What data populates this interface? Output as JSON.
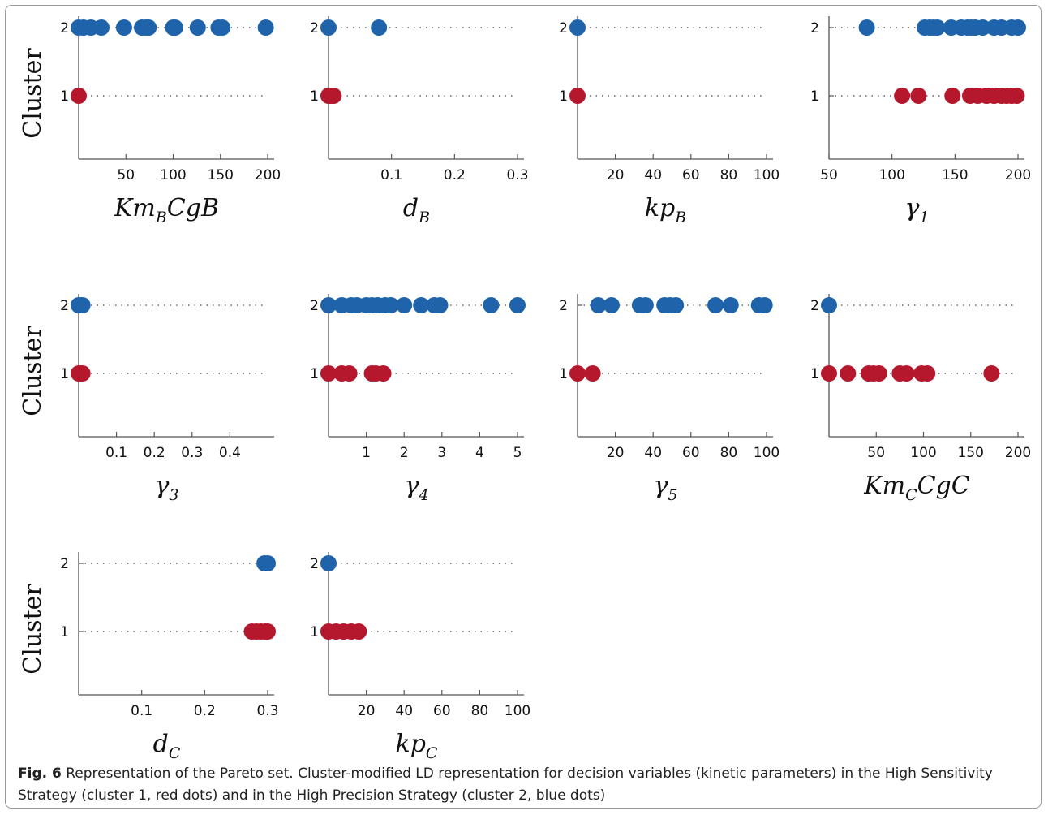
{
  "caption": {
    "label": "Fig. 6",
    "text": "Representation of the Pareto set. Cluster-modified LD representation for decision variables (kinetic parameters) in the High Sensitivity Strategy (cluster 1, red dots) and in the High Precision Strategy (cluster 2, blue dots)"
  },
  "colors": {
    "cluster1": "#b5182d",
    "cluster2": "#1f63aa"
  },
  "chart_data": [
    {
      "type": "scatter",
      "xlabel_main": "Km",
      "xlabel_sub": "B",
      "xlabel_rest": "CgB",
      "ylabel": "Cluster",
      "xlim": [
        0,
        200
      ],
      "xticks": [
        50,
        100,
        150,
        200
      ],
      "xtick_labels": [
        "50",
        "100",
        "150",
        "200"
      ],
      "yticks": [
        1,
        2
      ],
      "ytick_labels": [
        "1",
        "2"
      ],
      "grid": "dotted horizontal at cluster levels",
      "series": [
        {
          "values": [
            {
              "x": 0,
              "cluster": 2
            },
            {
              "x": 5,
              "cluster": 2
            },
            {
              "x": 13,
              "cluster": 2
            },
            {
              "x": 24,
              "cluster": 2
            },
            {
              "x": 48,
              "cluster": 2
            },
            {
              "x": 67,
              "cluster": 2
            },
            {
              "x": 71,
              "cluster": 2
            },
            {
              "x": 74,
              "cluster": 2
            },
            {
              "x": 100,
              "cluster": 2
            },
            {
              "x": 102,
              "cluster": 2
            },
            {
              "x": 126,
              "cluster": 2
            },
            {
              "x": 148,
              "cluster": 2
            },
            {
              "x": 152,
              "cluster": 2
            },
            {
              "x": 198,
              "cluster": 2
            },
            {
              "x": 0,
              "cluster": 1
            }
          ]
        }
      ]
    },
    {
      "type": "scatter",
      "xlabel_main": "d",
      "xlabel_sub": "B",
      "xlabel_rest": "",
      "ylabel": "",
      "xlim": [
        0,
        0.3
      ],
      "xticks": [
        0.1,
        0.2,
        0.3
      ],
      "xtick_labels": [
        "0.1",
        "0.2",
        "0.3"
      ],
      "yticks": [
        1,
        2
      ],
      "ytick_labels": [
        "1",
        "2"
      ],
      "series": [
        {
          "values": [
            {
              "x": 0,
              "cluster": 2
            },
            {
              "x": 0.08,
              "cluster": 2
            },
            {
              "x": 0,
              "cluster": 1
            },
            {
              "x": 0.004,
              "cluster": 1
            },
            {
              "x": 0.008,
              "cluster": 1
            }
          ]
        }
      ]
    },
    {
      "type": "scatter",
      "xlabel_main": "kp",
      "xlabel_sub": "B",
      "xlabel_rest": "",
      "ylabel": "",
      "xlim": [
        0,
        100
      ],
      "xticks": [
        20,
        40,
        60,
        80,
        100
      ],
      "xtick_labels": [
        "20",
        "40",
        "60",
        "80",
        "100"
      ],
      "yticks": [
        1,
        2
      ],
      "ytick_labels": [
        "1",
        "2"
      ],
      "series": [
        {
          "values": [
            {
              "x": 0,
              "cluster": 2
            },
            {
              "x": 0,
              "cluster": 1
            }
          ]
        }
      ]
    },
    {
      "type": "scatter",
      "xlabel_main": "γ",
      "xlabel_sub": "1",
      "xlabel_rest": "",
      "ylabel": "",
      "xlim": [
        50,
        200
      ],
      "xticks": [
        50,
        100,
        150,
        200
      ],
      "xtick_labels": [
        "50",
        "100",
        "150",
        "200"
      ],
      "yticks": [
        1,
        2
      ],
      "ytick_labels": [
        "1",
        "2"
      ],
      "series": [
        {
          "values": [
            {
              "x": 80,
              "cluster": 2
            },
            {
              "x": 126,
              "cluster": 2
            },
            {
              "x": 130,
              "cluster": 2
            },
            {
              "x": 133,
              "cluster": 2
            },
            {
              "x": 136,
              "cluster": 2
            },
            {
              "x": 147,
              "cluster": 2
            },
            {
              "x": 155,
              "cluster": 2
            },
            {
              "x": 160,
              "cluster": 2
            },
            {
              "x": 163,
              "cluster": 2
            },
            {
              "x": 166,
              "cluster": 2
            },
            {
              "x": 172,
              "cluster": 2
            },
            {
              "x": 181,
              "cluster": 2
            },
            {
              "x": 187,
              "cluster": 2
            },
            {
              "x": 195,
              "cluster": 2
            },
            {
              "x": 200,
              "cluster": 2
            },
            {
              "x": 108,
              "cluster": 1
            },
            {
              "x": 121,
              "cluster": 1
            },
            {
              "x": 148,
              "cluster": 1
            },
            {
              "x": 162,
              "cluster": 1
            },
            {
              "x": 168,
              "cluster": 1
            },
            {
              "x": 175,
              "cluster": 1
            },
            {
              "x": 181,
              "cluster": 1
            },
            {
              "x": 187,
              "cluster": 1
            },
            {
              "x": 191,
              "cluster": 1
            },
            {
              "x": 195,
              "cluster": 1
            },
            {
              "x": 199,
              "cluster": 1
            }
          ]
        }
      ]
    },
    {
      "type": "scatter",
      "xlabel_main": "γ",
      "xlabel_sub": "3",
      "xlabel_rest": "",
      "ylabel": "Cluster",
      "xlim": [
        0,
        0.5
      ],
      "xticks": [
        0.1,
        0.2,
        0.3,
        0.4
      ],
      "xtick_labels": [
        "0.1",
        "0.2",
        "0.3",
        "0.4"
      ],
      "yticks": [
        1,
        2
      ],
      "ytick_labels": [
        "1",
        "2"
      ],
      "series": [
        {
          "values": [
            {
              "x": 0,
              "cluster": 2
            },
            {
              "x": 0.004,
              "cluster": 2
            },
            {
              "x": 0.01,
              "cluster": 2
            },
            {
              "x": 0,
              "cluster": 1
            },
            {
              "x": 0.004,
              "cluster": 1
            },
            {
              "x": 0.01,
              "cluster": 1
            }
          ]
        }
      ]
    },
    {
      "type": "scatter",
      "xlabel_main": "γ",
      "xlabel_sub": "4",
      "xlabel_rest": "",
      "ylabel": "",
      "xlim": [
        0,
        5
      ],
      "xticks": [
        1,
        2,
        3,
        4,
        5
      ],
      "xtick_labels": [
        "1",
        "2",
        "3",
        "4",
        "5"
      ],
      "yticks": [
        1,
        2
      ],
      "ytick_labels": [
        "1",
        "2"
      ],
      "series": [
        {
          "values": [
            {
              "x": 0,
              "cluster": 2
            },
            {
              "x": 0.35,
              "cluster": 2
            },
            {
              "x": 0.6,
              "cluster": 2
            },
            {
              "x": 0.75,
              "cluster": 2
            },
            {
              "x": 1.0,
              "cluster": 2
            },
            {
              "x": 1.15,
              "cluster": 2
            },
            {
              "x": 1.3,
              "cluster": 2
            },
            {
              "x": 1.5,
              "cluster": 2
            },
            {
              "x": 1.65,
              "cluster": 2
            },
            {
              "x": 2.0,
              "cluster": 2
            },
            {
              "x": 2.45,
              "cluster": 2
            },
            {
              "x": 2.8,
              "cluster": 2
            },
            {
              "x": 2.95,
              "cluster": 2
            },
            {
              "x": 4.3,
              "cluster": 2
            },
            {
              "x": 5.0,
              "cluster": 2
            },
            {
              "x": 0,
              "cluster": 1
            },
            {
              "x": 0.35,
              "cluster": 1
            },
            {
              "x": 0.55,
              "cluster": 1
            },
            {
              "x": 1.15,
              "cluster": 1
            },
            {
              "x": 1.25,
              "cluster": 1
            },
            {
              "x": 1.45,
              "cluster": 1
            }
          ]
        }
      ]
    },
    {
      "type": "scatter",
      "xlabel_main": "γ",
      "xlabel_sub": "5",
      "xlabel_rest": "",
      "ylabel": "",
      "xlim": [
        0,
        100
      ],
      "xticks": [
        20,
        40,
        60,
        80,
        100
      ],
      "xtick_labels": [
        "20",
        "40",
        "60",
        "80",
        "100"
      ],
      "yticks": [
        1,
        2
      ],
      "ytick_labels": [
        "1",
        "2"
      ],
      "series": [
        {
          "values": [
            {
              "x": 11,
              "cluster": 2
            },
            {
              "x": 18,
              "cluster": 2
            },
            {
              "x": 33,
              "cluster": 2
            },
            {
              "x": 36,
              "cluster": 2
            },
            {
              "x": 46,
              "cluster": 2
            },
            {
              "x": 49,
              "cluster": 2
            },
            {
              "x": 52,
              "cluster": 2
            },
            {
              "x": 73,
              "cluster": 2
            },
            {
              "x": 81,
              "cluster": 2
            },
            {
              "x": 96,
              "cluster": 2
            },
            {
              "x": 99,
              "cluster": 2
            },
            {
              "x": 0,
              "cluster": 1
            },
            {
              "x": 8,
              "cluster": 1
            }
          ]
        }
      ]
    },
    {
      "type": "scatter",
      "xlabel_main": "Km",
      "xlabel_sub": "C",
      "xlabel_rest": "CgC",
      "ylabel": "",
      "xlim": [
        0,
        200
      ],
      "xticks": [
        50,
        100,
        150,
        200
      ],
      "xtick_labels": [
        "50",
        "100",
        "150",
        "200"
      ],
      "yticks": [
        1,
        2
      ],
      "ytick_labels": [
        "1",
        "2"
      ],
      "series": [
        {
          "values": [
            {
              "x": 0,
              "cluster": 2
            },
            {
              "x": 0,
              "cluster": 1
            },
            {
              "x": 20,
              "cluster": 1
            },
            {
              "x": 42,
              "cluster": 1
            },
            {
              "x": 47,
              "cluster": 1
            },
            {
              "x": 53,
              "cluster": 1
            },
            {
              "x": 75,
              "cluster": 1
            },
            {
              "x": 82,
              "cluster": 1
            },
            {
              "x": 98,
              "cluster": 1
            },
            {
              "x": 104,
              "cluster": 1
            },
            {
              "x": 172,
              "cluster": 1
            }
          ]
        }
      ]
    },
    {
      "type": "scatter",
      "xlabel_main": "d",
      "xlabel_sub": "C",
      "xlabel_rest": "",
      "ylabel": "Cluster",
      "xlim": [
        0,
        0.3
      ],
      "xticks": [
        0.1,
        0.2,
        0.3
      ],
      "xtick_labels": [
        "0.1",
        "0.2",
        "0.3"
      ],
      "yticks": [
        1,
        2
      ],
      "ytick_labels": [
        "1",
        "2"
      ],
      "series": [
        {
          "values": [
            {
              "x": 0.295,
              "cluster": 2
            },
            {
              "x": 0.3,
              "cluster": 2
            },
            {
              "x": 0.275,
              "cluster": 1
            },
            {
              "x": 0.282,
              "cluster": 1
            },
            {
              "x": 0.289,
              "cluster": 1
            },
            {
              "x": 0.296,
              "cluster": 1
            },
            {
              "x": 0.3,
              "cluster": 1
            }
          ]
        }
      ]
    },
    {
      "type": "scatter",
      "xlabel_main": "kp",
      "xlabel_sub": "C",
      "xlabel_rest": "",
      "ylabel": "",
      "xlim": [
        0,
        100
      ],
      "xticks": [
        20,
        40,
        60,
        80,
        100
      ],
      "xtick_labels": [
        "20",
        "40",
        "60",
        "80",
        "100"
      ],
      "yticks": [
        1,
        2
      ],
      "ytick_labels": [
        "1",
        "2"
      ],
      "series": [
        {
          "values": [
            {
              "x": 0,
              "cluster": 2
            },
            {
              "x": 0,
              "cluster": 1
            },
            {
              "x": 4,
              "cluster": 1
            },
            {
              "x": 8,
              "cluster": 1
            },
            {
              "x": 12,
              "cluster": 1
            },
            {
              "x": 16,
              "cluster": 1
            }
          ]
        }
      ]
    }
  ]
}
